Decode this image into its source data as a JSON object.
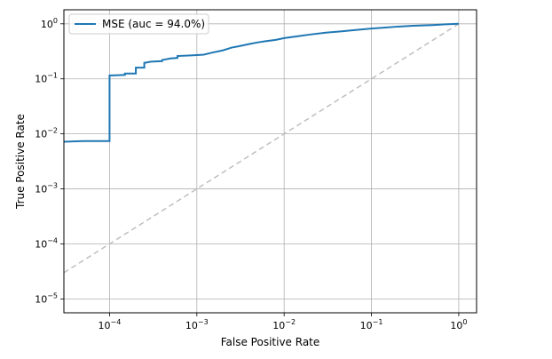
{
  "chart_data": {
    "type": "line",
    "title": "",
    "xlabel": "False Positive Rate",
    "ylabel": "True Positive Rate",
    "xscale": "log",
    "yscale": "log",
    "xlim": [
      3e-05,
      1.6
    ],
    "ylim": [
      5.6e-06,
      1.8
    ],
    "grid": true,
    "legend_position": "top-left",
    "x_ticks": [
      {
        "value": 0.0001,
        "base": "10",
        "exp": "−4"
      },
      {
        "value": 0.001,
        "base": "10",
        "exp": "−3"
      },
      {
        "value": 0.01,
        "base": "10",
        "exp": "−2"
      },
      {
        "value": 0.1,
        "base": "10",
        "exp": "−1"
      },
      {
        "value": 1,
        "base": "10",
        "exp": "0"
      }
    ],
    "y_ticks": [
      {
        "value": 1e-05,
        "base": "10",
        "exp": "−5"
      },
      {
        "value": 0.0001,
        "base": "10",
        "exp": "−4"
      },
      {
        "value": 0.001,
        "base": "10",
        "exp": "−3"
      },
      {
        "value": 0.01,
        "base": "10",
        "exp": "−2"
      },
      {
        "value": 0.1,
        "base": "10",
        "exp": "−1"
      },
      {
        "value": 1,
        "base": "10",
        "exp": "0"
      }
    ],
    "series": [
      {
        "name": "MSE (auc = 94.0%)",
        "color": "#1f77b4",
        "style": "solid",
        "x": [
          3e-05,
          5e-05,
          0.0001,
          0.0001,
          0.00015,
          0.00015,
          0.0002,
          0.0002,
          0.00025,
          0.00025,
          0.0003,
          0.0004,
          0.0004,
          0.0005,
          0.0006,
          0.0006,
          0.0008,
          0.001,
          0.0012,
          0.0015,
          0.002,
          0.0025,
          0.003,
          0.004,
          0.005,
          0.006,
          0.008,
          0.01,
          0.015,
          0.02,
          0.03,
          0.05,
          0.07,
          0.1,
          0.15,
          0.2,
          0.3,
          0.5,
          0.7,
          1.0
        ],
        "y": [
          0.0072,
          0.0074,
          0.0074,
          0.115,
          0.118,
          0.125,
          0.125,
          0.16,
          0.16,
          0.195,
          0.205,
          0.21,
          0.22,
          0.235,
          0.24,
          0.26,
          0.265,
          0.27,
          0.275,
          0.3,
          0.33,
          0.37,
          0.39,
          0.43,
          0.46,
          0.48,
          0.51,
          0.55,
          0.6,
          0.64,
          0.69,
          0.74,
          0.78,
          0.82,
          0.86,
          0.89,
          0.92,
          0.95,
          0.98,
          1.0
        ]
      },
      {
        "name": "",
        "color": "#bfbfbf",
        "style": "dashed",
        "x": [
          3e-05,
          1.0
        ],
        "y": [
          3e-05,
          1.0
        ]
      }
    ]
  }
}
